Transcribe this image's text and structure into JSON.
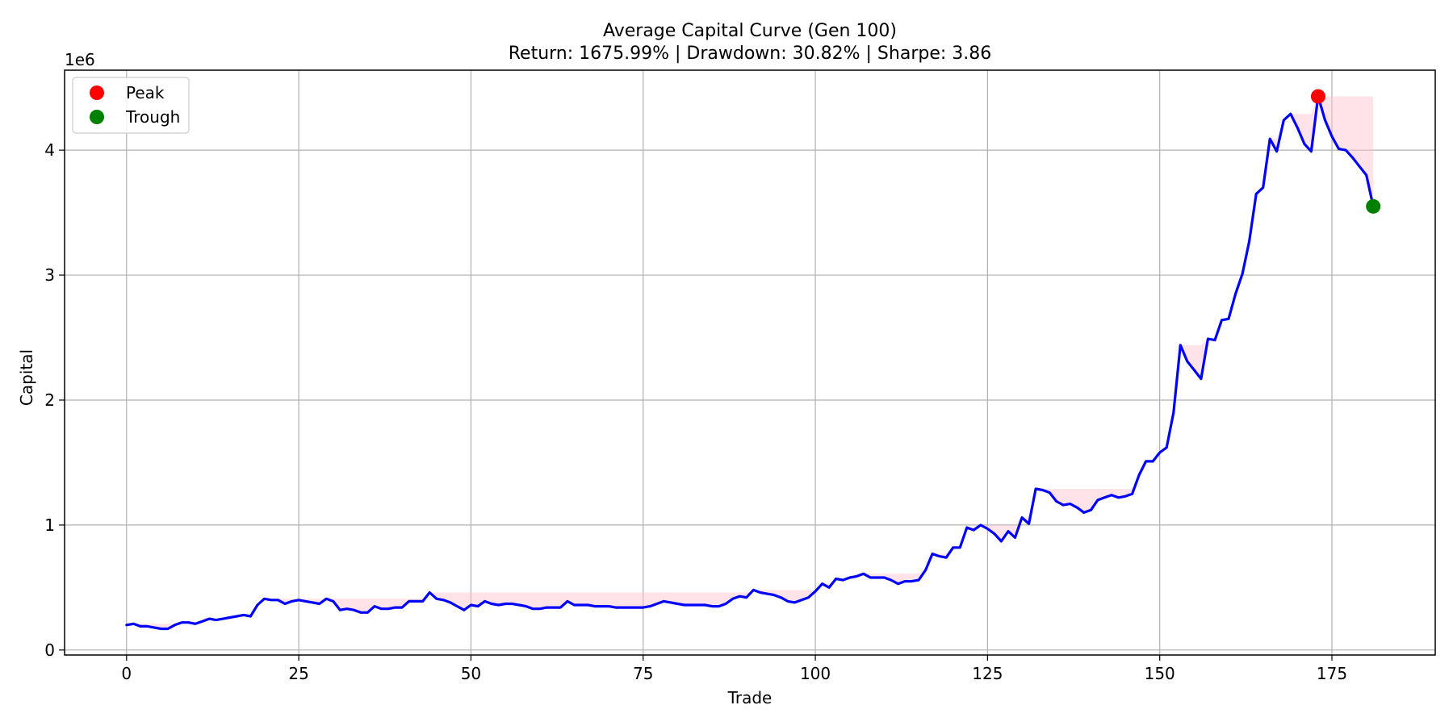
{
  "chart_data": {
    "type": "line",
    "title": "Average Capital Curve (Gen 100)",
    "subtitle": "Return: 1675.99% | Drawdown: 30.82% | Sharpe: 3.86",
    "xlabel": "Trade",
    "ylabel": "Capital",
    "y_scale_label": "1e6",
    "xlim": [
      -9,
      190
    ],
    "ylim": [
      -0.04,
      4.64
    ],
    "xticks": [
      0,
      25,
      50,
      75,
      100,
      125,
      150,
      175
    ],
    "yticks": [
      0,
      1,
      2,
      3,
      4
    ],
    "xtick_labels": [
      "0",
      "25",
      "50",
      "75",
      "100",
      "125",
      "150",
      "175"
    ],
    "ytick_labels": [
      "0",
      "1",
      "2",
      "3",
      "4"
    ],
    "grid": true,
    "legend_position": "top-left",
    "series": [
      {
        "name": "",
        "color": "#0000ff",
        "x": [
          0,
          1,
          2,
          3,
          4,
          5,
          6,
          7,
          8,
          9,
          10,
          11,
          12,
          13,
          14,
          15,
          16,
          17,
          18,
          19,
          20,
          21,
          22,
          23,
          24,
          25,
          26,
          27,
          28,
          29,
          30,
          31,
          32,
          33,
          34,
          35,
          36,
          37,
          38,
          39,
          40,
          41,
          42,
          43,
          44,
          45,
          46,
          47,
          48,
          49,
          50,
          51,
          52,
          53,
          54,
          55,
          56,
          57,
          58,
          59,
          60,
          61,
          62,
          63,
          64,
          65,
          66,
          67,
          68,
          69,
          70,
          71,
          72,
          73,
          74,
          75,
          76,
          77,
          78,
          79,
          80,
          81,
          82,
          83,
          84,
          85,
          86,
          87,
          88,
          89,
          90,
          91,
          92,
          93,
          94,
          95,
          96,
          97,
          98,
          99,
          100,
          101,
          102,
          103,
          104,
          105,
          106,
          107,
          108,
          109,
          110,
          111,
          112,
          113,
          114,
          115,
          116,
          117,
          118,
          119,
          120,
          121,
          122,
          123,
          124,
          125,
          126,
          127,
          128,
          129,
          130,
          131,
          132,
          133,
          134,
          135,
          136,
          137,
          138,
          139,
          140,
          141,
          142,
          143,
          144,
          145,
          146,
          147,
          148,
          149,
          150,
          151,
          152,
          153,
          154,
          155,
          156,
          157,
          158,
          159,
          160,
          161,
          162,
          163,
          164,
          165,
          166,
          167,
          168,
          169,
          170,
          171,
          172,
          173,
          174,
          175,
          176,
          177,
          178,
          179,
          180,
          181
        ],
        "values": [
          0.2,
          0.21,
          0.19,
          0.19,
          0.18,
          0.17,
          0.17,
          0.2,
          0.22,
          0.22,
          0.21,
          0.23,
          0.25,
          0.24,
          0.25,
          0.26,
          0.27,
          0.28,
          0.27,
          0.36,
          0.41,
          0.4,
          0.4,
          0.37,
          0.39,
          0.4,
          0.39,
          0.38,
          0.37,
          0.41,
          0.39,
          0.32,
          0.33,
          0.32,
          0.3,
          0.3,
          0.35,
          0.33,
          0.33,
          0.34,
          0.34,
          0.39,
          0.39,
          0.39,
          0.46,
          0.41,
          0.4,
          0.38,
          0.35,
          0.32,
          0.36,
          0.35,
          0.39,
          0.37,
          0.36,
          0.37,
          0.37,
          0.36,
          0.35,
          0.33,
          0.33,
          0.34,
          0.34,
          0.34,
          0.39,
          0.36,
          0.36,
          0.36,
          0.35,
          0.35,
          0.35,
          0.34,
          0.34,
          0.34,
          0.34,
          0.34,
          0.35,
          0.37,
          0.39,
          0.38,
          0.37,
          0.36,
          0.36,
          0.36,
          0.36,
          0.35,
          0.35,
          0.37,
          0.41,
          0.43,
          0.42,
          0.48,
          0.46,
          0.45,
          0.44,
          0.42,
          0.39,
          0.38,
          0.4,
          0.42,
          0.47,
          0.53,
          0.5,
          0.57,
          0.56,
          0.58,
          0.59,
          0.61,
          0.58,
          0.58,
          0.58,
          0.56,
          0.53,
          0.55,
          0.55,
          0.56,
          0.64,
          0.77,
          0.75,
          0.74,
          0.82,
          0.82,
          0.98,
          0.96,
          1.0,
          0.97,
          0.93,
          0.87,
          0.95,
          0.9,
          1.06,
          1.01,
          1.29,
          1.28,
          1.26,
          1.19,
          1.16,
          1.17,
          1.14,
          1.1,
          1.12,
          1.2,
          1.22,
          1.24,
          1.22,
          1.23,
          1.25,
          1.4,
          1.51,
          1.51,
          1.58,
          1.62,
          1.9,
          2.44,
          2.31,
          2.24,
          2.17,
          2.49,
          2.48,
          2.64,
          2.65,
          2.85,
          3.01,
          3.27,
          3.65,
          3.7,
          4.09,
          3.99,
          4.24,
          4.29,
          4.18,
          4.05,
          3.99,
          4.43,
          4.24,
          4.11,
          4.01,
          4.0,
          3.94,
          3.87,
          3.8,
          3.55
        ]
      }
    ],
    "drawdown_fill_color": "#ffc0cb",
    "markers": [
      {
        "name": "Peak",
        "x": 173,
        "y": 4.43,
        "color": "#ff0000"
      },
      {
        "name": "Trough",
        "x": 181,
        "y": 3.55,
        "color": "#008000"
      }
    ]
  }
}
